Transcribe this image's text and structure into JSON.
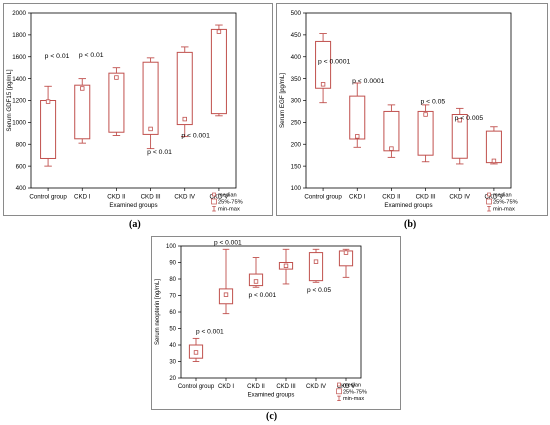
{
  "chart_data": [
    {
      "type": "box",
      "panel_label": "(a)",
      "xlabel": "Examined groups",
      "ylabel": "Serum GDF15 [pg/mL]",
      "ylim": [
        400,
        2000
      ],
      "yticks": [
        400,
        600,
        800,
        1000,
        1200,
        1400,
        1600,
        1800,
        2000
      ],
      "categories": [
        "Control group",
        "CKD I",
        "CKD II",
        "CKD III",
        "CKD IV",
        "CKD V"
      ],
      "boxes": [
        {
          "min": 600,
          "q1": 670,
          "median": 1190,
          "q3": 1200,
          "max": 1330
        },
        {
          "min": 810,
          "q1": 850,
          "median": 1310,
          "q3": 1340,
          "max": 1400
        },
        {
          "min": 880,
          "q1": 910,
          "median": 1410,
          "q3": 1450,
          "max": 1500
        },
        {
          "min": 760,
          "q1": 890,
          "median": 940,
          "q3": 1550,
          "max": 1590
        },
        {
          "min": 870,
          "q1": 980,
          "median": 1030,
          "q3": 1640,
          "max": 1690
        },
        {
          "min": 1060,
          "q1": 1080,
          "median": 1830,
          "q3": 1850,
          "max": 1890
        }
      ],
      "annotations": [
        {
          "text": "p < 0.01",
          "x": 0.4,
          "y": 1590
        },
        {
          "text": "p < 0.01",
          "x": 1.4,
          "y": 1600
        },
        {
          "text": "p < 0.01",
          "x": 3.4,
          "y": 710
        },
        {
          "text": "p < 0.001",
          "x": 4.4,
          "y": 860
        }
      ],
      "legend": [
        "median",
        "25%-75%",
        "min-max"
      ],
      "legend_position": "bottom-right"
    },
    {
      "type": "box",
      "panel_label": "(b)",
      "xlabel": "Examined groups",
      "ylabel": "Serum EGF [pg/mL]",
      "ylim": [
        100,
        500
      ],
      "yticks": [
        100,
        150,
        200,
        250,
        300,
        350,
        400,
        450,
        500
      ],
      "categories": [
        "Control group",
        "CKD I",
        "CKD II",
        "CKD III",
        "CKD IV",
        "CKD V"
      ],
      "boxes": [
        {
          "min": 295,
          "q1": 328,
          "median": 337,
          "q3": 435,
          "max": 453
        },
        {
          "min": 193,
          "q1": 212,
          "median": 218,
          "q3": 310,
          "max": 340
        },
        {
          "min": 170,
          "q1": 185,
          "median": 190,
          "q3": 275,
          "max": 290
        },
        {
          "min": 160,
          "q1": 175,
          "median": 268,
          "q3": 275,
          "max": 290
        },
        {
          "min": 155,
          "q1": 168,
          "median": 255,
          "q3": 268,
          "max": 282
        },
        {
          "min": 155,
          "q1": 158,
          "median": 162,
          "q3": 230,
          "max": 240
        }
      ],
      "annotations": [
        {
          "text": "p < 0.0001",
          "x": 0.35,
          "y": 385
        },
        {
          "text": "p < 0.0001",
          "x": 1.35,
          "y": 340
        },
        {
          "text": "p < 0.05",
          "x": 3.35,
          "y": 293
        },
        {
          "text": "p < 0.005",
          "x": 4.35,
          "y": 255
        }
      ],
      "legend": [
        "median",
        "25%-75%",
        "min-max"
      ],
      "legend_position": "bottom-right"
    },
    {
      "type": "box",
      "panel_label": "(c)",
      "xlabel": "Examined groups",
      "ylabel": "Serum neopterin [ng/mL]",
      "ylim": [
        20,
        100
      ],
      "yticks": [
        20,
        30,
        40,
        50,
        60,
        70,
        80,
        90,
        100
      ],
      "categories": [
        "Control group",
        "CKD I",
        "CKD II",
        "CKD III",
        "CKD IV",
        "CKD V"
      ],
      "boxes": [
        {
          "min": 30,
          "q1": 32,
          "median": 35.5,
          "q3": 40,
          "max": 44
        },
        {
          "min": 59,
          "q1": 65,
          "median": 70.5,
          "q3": 74,
          "max": 98
        },
        {
          "min": 75,
          "q1": 76,
          "median": 78.5,
          "q3": 83,
          "max": 93
        },
        {
          "min": 77,
          "q1": 86,
          "median": 88,
          "q3": 90,
          "max": 98
        },
        {
          "min": 78,
          "q1": 79,
          "median": 90.5,
          "q3": 96,
          "max": 98
        },
        {
          "min": 81,
          "q1": 88,
          "median": 96,
          "q3": 97,
          "max": 98
        }
      ],
      "annotations": [
        {
          "text": "p < 0.001",
          "x": 0.5,
          "y": 47
        },
        {
          "text": "p < 0.001",
          "x": 1.1,
          "y": 101
        },
        {
          "text": "p < 0.001",
          "x": 2.25,
          "y": 69
        },
        {
          "text": "p < 0.05",
          "x": 4.2,
          "y": 72
        }
      ],
      "legend": [
        "median",
        "25%-75%",
        "min-max"
      ],
      "legend_position": "bottom-right"
    }
  ],
  "colors": {
    "box": "#c0504d",
    "axis": "#000000",
    "grid": "#d0d0d0"
  }
}
